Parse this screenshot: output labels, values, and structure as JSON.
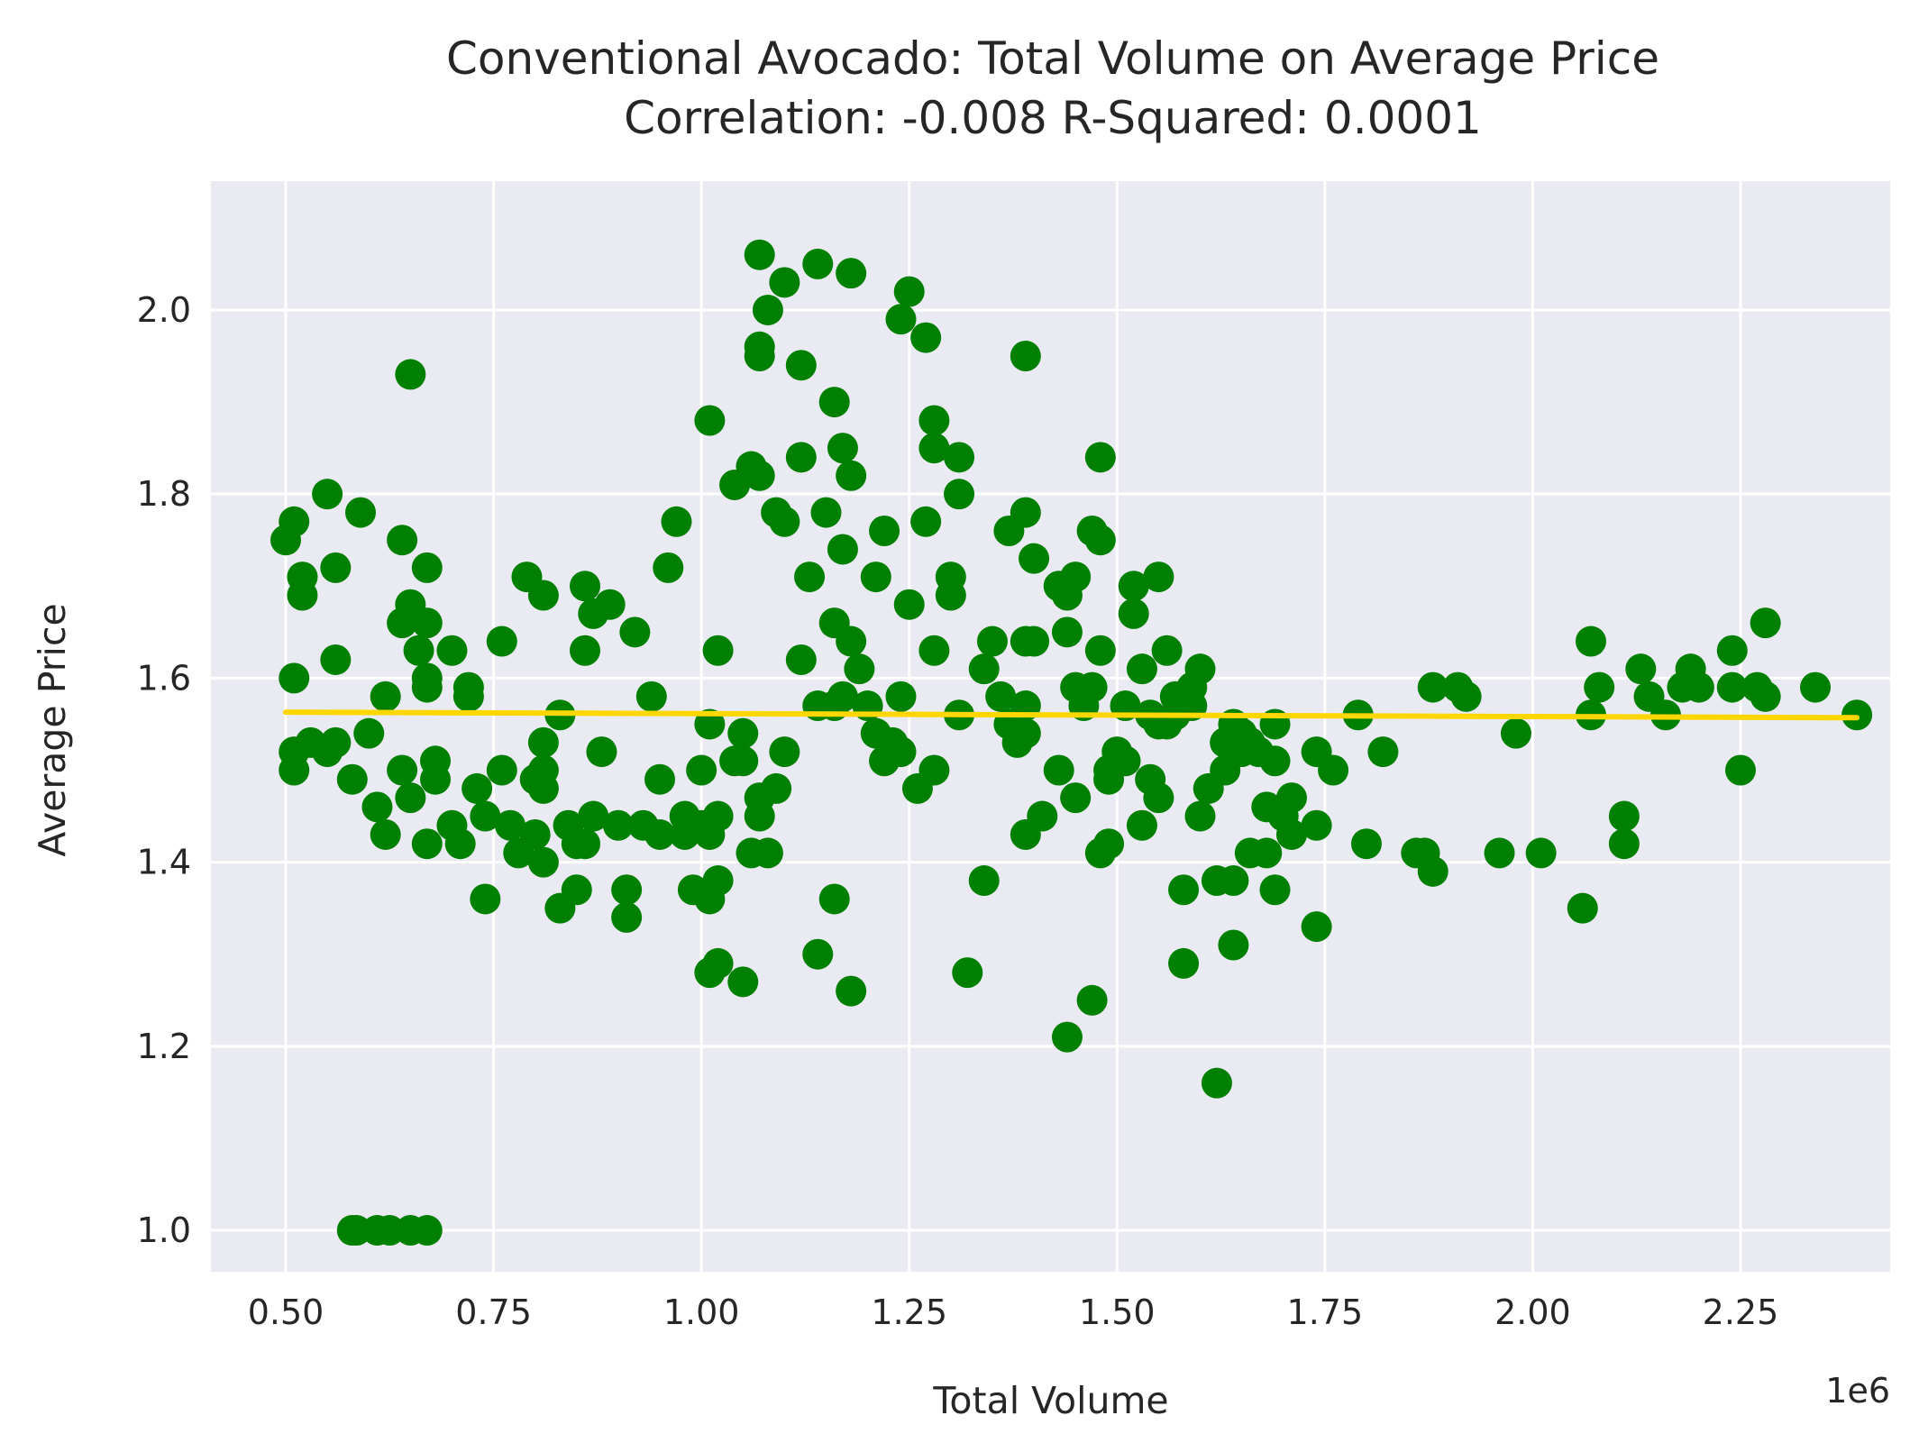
{
  "chart_data": {
    "type": "scatter",
    "title": "Conventional Avocado: Total Volume on Average Price",
    "subtitle": "Correlation: -0.008  R-Squared: 0.0001",
    "xlabel": "Total Volume",
    "ylabel": "Average Price",
    "x_offset_label": "1e6",
    "xlim": [
      0.41,
      2.43
    ],
    "ylim": [
      0.955,
      2.14
    ],
    "x_ticks": [
      0.5,
      0.75,
      1.0,
      1.25,
      1.5,
      1.75,
      2.0,
      2.25
    ],
    "x_tick_labels": [
      "0.50",
      "0.75",
      "1.00",
      "1.25",
      "1.50",
      "1.75",
      "2.00",
      "2.25"
    ],
    "y_ticks": [
      1.0,
      1.2,
      1.4,
      1.6,
      1.8,
      2.0
    ],
    "y_tick_labels": [
      "1.0",
      "1.2",
      "1.4",
      "1.6",
      "1.8",
      "2.0"
    ],
    "grid": true,
    "point_color": "#008000",
    "line_color": "#FFD700",
    "plot_background": "#EAEAF2",
    "regression_line": {
      "x": [
        0.5,
        2.39
      ],
      "y": [
        1.563,
        1.557
      ]
    },
    "points": [
      [
        0.5,
        1.75
      ],
      [
        0.51,
        1.77
      ],
      [
        0.52,
        1.71
      ],
      [
        0.52,
        1.69
      ],
      [
        0.51,
        1.6
      ],
      [
        0.51,
        1.52
      ],
      [
        0.51,
        1.5
      ],
      [
        0.53,
        1.53
      ],
      [
        0.55,
        1.52
      ],
      [
        0.56,
        1.53
      ],
      [
        0.55,
        1.8
      ],
      [
        0.56,
        1.72
      ],
      [
        0.56,
        1.62
      ],
      [
        0.59,
        1.78
      ],
      [
        0.6,
        1.54
      ],
      [
        0.58,
        1.49
      ],
      [
        0.61,
        1.46
      ],
      [
        0.62,
        1.58
      ],
      [
        0.62,
        1.43
      ],
      [
        0.64,
        1.75
      ],
      [
        0.64,
        1.66
      ],
      [
        0.65,
        1.67
      ],
      [
        0.65,
        1.68
      ],
      [
        0.66,
        1.63
      ],
      [
        0.67,
        1.66
      ],
      [
        0.67,
        1.72
      ],
      [
        0.67,
        1.6
      ],
      [
        0.67,
        1.59
      ],
      [
        0.64,
        1.5
      ],
      [
        0.65,
        1.47
      ],
      [
        0.65,
        1.93
      ],
      [
        0.68,
        1.51
      ],
      [
        0.68,
        1.49
      ],
      [
        0.67,
        1.42
      ],
      [
        0.7,
        1.44
      ],
      [
        0.7,
        1.63
      ],
      [
        0.72,
        1.59
      ],
      [
        0.72,
        1.58
      ],
      [
        0.71,
        1.42
      ],
      [
        0.73,
        1.48
      ],
      [
        0.74,
        1.45
      ],
      [
        0.74,
        1.36
      ],
      [
        0.76,
        1.64
      ],
      [
        0.76,
        1.5
      ],
      [
        0.77,
        1.44
      ],
      [
        0.78,
        1.41
      ],
      [
        0.79,
        1.71
      ],
      [
        0.8,
        1.49
      ],
      [
        0.8,
        1.43
      ],
      [
        0.81,
        1.69
      ],
      [
        0.81,
        1.53
      ],
      [
        0.81,
        1.5
      ],
      [
        0.81,
        1.48
      ],
      [
        0.81,
        1.4
      ],
      [
        0.83,
        1.35
      ],
      [
        0.83,
        1.56
      ],
      [
        0.84,
        1.44
      ],
      [
        0.85,
        1.37
      ],
      [
        0.85,
        1.42
      ],
      [
        0.86,
        1.63
      ],
      [
        0.86,
        1.7
      ],
      [
        0.87,
        1.67
      ],
      [
        0.86,
        1.42
      ],
      [
        0.87,
        1.45
      ],
      [
        0.88,
        1.52
      ],
      [
        0.89,
        1.68
      ],
      [
        0.9,
        1.44
      ],
      [
        0.92,
        1.65
      ],
      [
        0.91,
        1.37
      ],
      [
        0.91,
        1.34
      ],
      [
        0.93,
        1.44
      ],
      [
        0.94,
        1.58
      ],
      [
        0.95,
        1.49
      ],
      [
        0.95,
        1.43
      ],
      [
        0.96,
        1.72
      ],
      [
        0.97,
        1.77
      ],
      [
        0.98,
        1.45
      ],
      [
        0.98,
        1.43
      ],
      [
        0.99,
        1.37
      ],
      [
        1.0,
        1.44
      ],
      [
        1.0,
        1.5
      ],
      [
        1.01,
        1.55
      ],
      [
        1.01,
        1.43
      ],
      [
        1.01,
        1.88
      ],
      [
        1.01,
        1.36
      ],
      [
        1.01,
        1.28
      ],
      [
        1.02,
        1.63
      ],
      [
        1.02,
        1.38
      ],
      [
        1.02,
        1.45
      ],
      [
        1.02,
        1.29
      ],
      [
        1.04,
        1.51
      ],
      [
        1.04,
        1.81
      ],
      [
        1.05,
        1.54
      ],
      [
        1.05,
        1.51
      ],
      [
        1.05,
        1.27
      ],
      [
        1.06,
        1.83
      ],
      [
        1.07,
        1.82
      ],
      [
        1.06,
        1.41
      ],
      [
        1.07,
        1.45
      ],
      [
        1.07,
        1.47
      ],
      [
        1.07,
        1.96
      ],
      [
        1.07,
        1.95
      ],
      [
        1.08,
        2.0
      ],
      [
        1.07,
        2.06
      ],
      [
        1.08,
        1.41
      ],
      [
        1.09,
        1.78
      ],
      [
        1.09,
        1.48
      ],
      [
        1.1,
        1.77
      ],
      [
        1.1,
        2.03
      ],
      [
        1.1,
        1.52
      ],
      [
        1.12,
        1.62
      ],
      [
        1.12,
        1.84
      ],
      [
        1.12,
        1.94
      ],
      [
        1.13,
        1.71
      ],
      [
        1.14,
        2.05
      ],
      [
        1.14,
        1.3
      ],
      [
        1.14,
        1.57
      ],
      [
        1.15,
        1.78
      ],
      [
        1.16,
        1.66
      ],
      [
        1.16,
        1.57
      ],
      [
        1.16,
        1.9
      ],
      [
        1.17,
        1.58
      ],
      [
        1.16,
        1.36
      ],
      [
        1.17,
        1.85
      ],
      [
        1.17,
        1.74
      ],
      [
        1.18,
        1.64
      ],
      [
        1.18,
        1.82
      ],
      [
        1.18,
        1.26
      ],
      [
        1.19,
        1.61
      ],
      [
        1.18,
        2.04
      ],
      [
        1.2,
        1.57
      ],
      [
        1.21,
        1.71
      ],
      [
        1.22,
        1.76
      ],
      [
        1.21,
        1.54
      ],
      [
        1.22,
        1.51
      ],
      [
        1.23,
        1.53
      ],
      [
        1.24,
        1.52
      ],
      [
        1.24,
        1.58
      ],
      [
        1.24,
        1.99
      ],
      [
        1.25,
        1.68
      ],
      [
        1.25,
        2.02
      ],
      [
        1.26,
        1.48
      ],
      [
        1.27,
        1.77
      ],
      [
        1.27,
        1.97
      ],
      [
        1.28,
        1.88
      ],
      [
        1.28,
        1.85
      ],
      [
        1.28,
        1.63
      ],
      [
        1.28,
        1.5
      ],
      [
        1.3,
        1.71
      ],
      [
        1.3,
        1.69
      ],
      [
        1.31,
        1.8
      ],
      [
        1.31,
        1.84
      ],
      [
        1.31,
        1.56
      ],
      [
        1.32,
        1.28
      ],
      [
        1.34,
        1.61
      ],
      [
        1.34,
        1.38
      ],
      [
        1.35,
        1.64
      ],
      [
        1.36,
        1.58
      ],
      [
        1.37,
        1.76
      ],
      [
        1.37,
        1.55
      ],
      [
        1.38,
        1.53
      ],
      [
        1.39,
        1.64
      ],
      [
        1.39,
        1.78
      ],
      [
        1.39,
        1.95
      ],
      [
        1.39,
        1.57
      ],
      [
        1.4,
        1.73
      ],
      [
        1.4,
        1.64
      ],
      [
        1.39,
        1.54
      ],
      [
        1.39,
        1.43
      ],
      [
        1.41,
        1.45
      ],
      [
        1.43,
        1.7
      ],
      [
        1.43,
        1.5
      ],
      [
        1.44,
        1.69
      ],
      [
        1.44,
        1.65
      ],
      [
        1.44,
        1.21
      ],
      [
        1.45,
        1.71
      ],
      [
        1.45,
        1.59
      ],
      [
        1.45,
        1.47
      ],
      [
        1.46,
        1.57
      ],
      [
        1.47,
        1.76
      ],
      [
        1.47,
        1.59
      ],
      [
        1.47,
        1.25
      ],
      [
        1.48,
        1.75
      ],
      [
        1.48,
        1.63
      ],
      [
        1.48,
        1.84
      ],
      [
        1.48,
        1.41
      ],
      [
        1.49,
        1.5
      ],
      [
        1.49,
        1.42
      ],
      [
        1.49,
        1.49
      ],
      [
        1.5,
        1.52
      ],
      [
        1.51,
        1.51
      ],
      [
        1.51,
        1.57
      ],
      [
        1.52,
        1.7
      ],
      [
        1.52,
        1.67
      ],
      [
        1.53,
        1.61
      ],
      [
        1.53,
        1.44
      ],
      [
        1.54,
        1.49
      ],
      [
        1.54,
        1.56
      ],
      [
        1.55,
        1.47
      ],
      [
        1.55,
        1.55
      ],
      [
        1.55,
        1.71
      ],
      [
        1.56,
        1.63
      ],
      [
        1.56,
        1.55
      ],
      [
        1.57,
        1.56
      ],
      [
        1.57,
        1.58
      ],
      [
        1.58,
        1.29
      ],
      [
        1.58,
        1.37
      ],
      [
        1.59,
        1.59
      ],
      [
        1.59,
        1.57
      ],
      [
        1.6,
        1.61
      ],
      [
        1.6,
        1.45
      ],
      [
        1.61,
        1.48
      ],
      [
        1.62,
        1.16
      ],
      [
        1.62,
        1.38
      ],
      [
        1.63,
        1.53
      ],
      [
        1.63,
        1.5
      ],
      [
        1.64,
        1.55
      ],
      [
        1.64,
        1.31
      ],
      [
        1.64,
        1.38
      ],
      [
        1.65,
        1.52
      ],
      [
        1.65,
        1.54
      ],
      [
        1.66,
        1.41
      ],
      [
        1.66,
        1.53
      ],
      [
        1.67,
        1.52
      ],
      [
        1.68,
        1.41
      ],
      [
        1.68,
        1.46
      ],
      [
        1.69,
        1.55
      ],
      [
        1.69,
        1.51
      ],
      [
        1.69,
        1.37
      ],
      [
        1.7,
        1.45
      ],
      [
        1.71,
        1.47
      ],
      [
        1.71,
        1.43
      ],
      [
        1.74,
        1.33
      ],
      [
        1.74,
        1.52
      ],
      [
        1.74,
        1.44
      ],
      [
        1.76,
        1.5
      ],
      [
        1.79,
        1.56
      ],
      [
        1.8,
        1.42
      ],
      [
        1.82,
        1.52
      ],
      [
        1.86,
        1.41
      ],
      [
        1.87,
        1.41
      ],
      [
        1.88,
        1.39
      ],
      [
        1.88,
        1.59
      ],
      [
        1.91,
        1.59
      ],
      [
        1.92,
        1.58
      ],
      [
        1.96,
        1.41
      ],
      [
        1.98,
        1.54
      ],
      [
        2.01,
        1.41
      ],
      [
        2.06,
        1.35
      ],
      [
        2.07,
        1.56
      ],
      [
        2.07,
        1.64
      ],
      [
        2.08,
        1.59
      ],
      [
        2.11,
        1.42
      ],
      [
        2.11,
        1.45
      ],
      [
        2.13,
        1.61
      ],
      [
        2.14,
        1.58
      ],
      [
        2.16,
        1.56
      ],
      [
        2.18,
        1.59
      ],
      [
        2.19,
        1.61
      ],
      [
        2.2,
        1.59
      ],
      [
        2.24,
        1.63
      ],
      [
        2.24,
        1.59
      ],
      [
        2.25,
        1.5
      ],
      [
        2.27,
        1.59
      ],
      [
        2.28,
        1.58
      ],
      [
        2.28,
        1.66
      ],
      [
        2.34,
        1.59
      ],
      [
        2.39,
        1.56
      ],
      [
        0.58,
        1.0
      ],
      [
        0.585,
        1.0
      ],
      [
        0.61,
        1.0
      ],
      [
        0.625,
        1.0
      ],
      [
        0.65,
        1.0
      ],
      [
        0.67,
        1.0
      ]
    ]
  }
}
